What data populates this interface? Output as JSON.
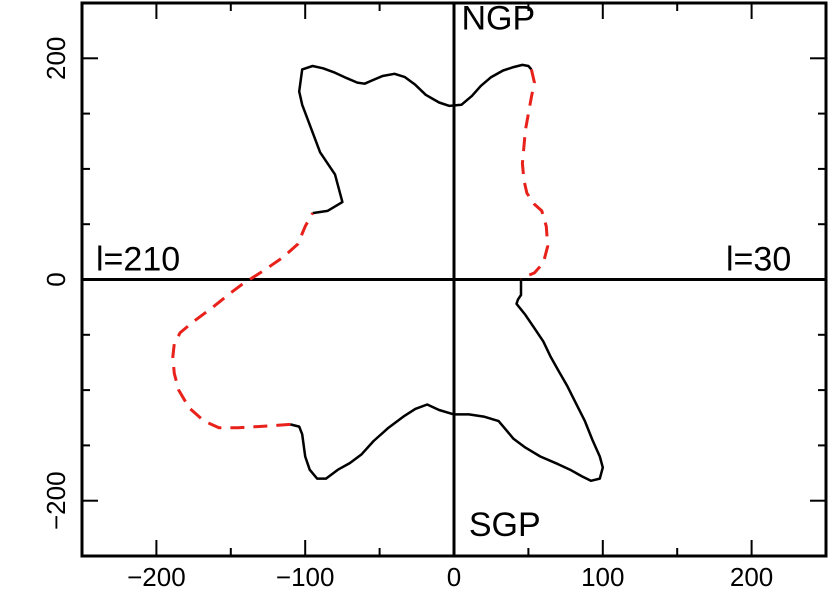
{
  "chart_data": {
    "type": "line",
    "title": "",
    "xlabel": "",
    "ylabel": "",
    "xlim": [
      -250,
      250
    ],
    "ylim": [
      -250,
      250
    ],
    "x_ticks": [
      -200,
      -100,
      0,
      100,
      200
    ],
    "y_ticks": [
      -200,
      0,
      200
    ],
    "x_tick_labels": [
      "−200",
      "−100",
      "0",
      "100",
      "200"
    ],
    "y_tick_labels": [
      "−200",
      "0",
      "200"
    ],
    "annotations": {
      "top": "NGP",
      "bottom": "SGP",
      "left": "l=210",
      "right": "l=30"
    },
    "grid": false,
    "colors": {
      "solid": "#000000",
      "dashed": "#e8211b"
    },
    "series": [
      {
        "style": "solid",
        "points": [
          [
            -95,
            60
          ],
          [
            -85,
            62
          ],
          [
            -75,
            70
          ],
          [
            -80,
            95
          ],
          [
            -90,
            115
          ],
          [
            -97,
            140
          ],
          [
            -102,
            158
          ],
          [
            -104,
            170
          ],
          [
            -103,
            180
          ],
          [
            -102,
            190
          ],
          [
            -95,
            193
          ],
          [
            -88,
            191
          ],
          [
            -80,
            187
          ],
          [
            -72,
            182
          ],
          [
            -65,
            178
          ],
          [
            -60,
            177
          ],
          [
            -55,
            180
          ],
          [
            -48,
            184
          ],
          [
            -40,
            186
          ],
          [
            -33,
            183
          ],
          [
            -26,
            176
          ],
          [
            -19,
            167
          ],
          [
            -10,
            160
          ],
          [
            -3,
            157
          ],
          [
            5,
            158
          ],
          [
            12,
            166
          ],
          [
            18,
            175
          ],
          [
            25,
            183
          ],
          [
            33,
            189
          ],
          [
            40,
            192
          ],
          [
            46,
            194
          ],
          [
            50,
            193
          ],
          [
            52,
            190
          ]
        ]
      },
      {
        "style": "dashed",
        "points": [
          [
            52,
            190
          ],
          [
            54,
            178
          ],
          [
            52,
            165
          ],
          [
            50,
            150
          ],
          [
            48,
            135
          ],
          [
            47,
            120
          ],
          [
            46,
            105
          ],
          [
            47,
            90
          ],
          [
            49,
            78
          ],
          [
            54,
            68
          ],
          [
            59,
            62
          ],
          [
            62,
            48
          ],
          [
            63,
            30
          ],
          [
            60,
            15
          ],
          [
            54,
            6
          ],
          [
            47,
            2
          ],
          [
            45,
            0
          ]
        ]
      },
      {
        "style": "solid",
        "points": [
          [
            45,
            0
          ],
          [
            45,
            -8
          ],
          [
            45,
            -14
          ],
          [
            43,
            -18
          ],
          [
            42,
            -22
          ],
          [
            48,
            -32
          ],
          [
            54,
            -44
          ],
          [
            60,
            -56
          ],
          [
            65,
            -70
          ],
          [
            70,
            -82
          ],
          [
            76,
            -96
          ],
          [
            82,
            -112
          ],
          [
            88,
            -128
          ],
          [
            93,
            -145
          ],
          [
            98,
            -160
          ],
          [
            100,
            -170
          ],
          [
            98,
            -180
          ],
          [
            92,
            -182
          ],
          [
            86,
            -178
          ],
          [
            78,
            -172
          ],
          [
            70,
            -167
          ],
          [
            58,
            -160
          ],
          [
            48,
            -152
          ],
          [
            40,
            -144
          ],
          [
            35,
            -136
          ],
          [
            30,
            -128
          ],
          [
            20,
            -124
          ],
          [
            10,
            -122
          ],
          [
            0,
            -122
          ],
          [
            -10,
            -118
          ],
          [
            -18,
            -113
          ],
          [
            -26,
            -117
          ],
          [
            -34,
            -124
          ],
          [
            -44,
            -134
          ],
          [
            -54,
            -146
          ],
          [
            -62,
            -158
          ],
          [
            -70,
            -166
          ],
          [
            -78,
            -172
          ],
          [
            -86,
            -180
          ],
          [
            -92,
            -180
          ],
          [
            -97,
            -172
          ],
          [
            -100,
            -160
          ],
          [
            -101,
            -150
          ],
          [
            -102,
            -140
          ],
          [
            -104,
            -133
          ],
          [
            -110,
            -131
          ]
        ]
      },
      {
        "style": "dashed",
        "points": [
          [
            -110,
            -131
          ],
          [
            -120,
            -132
          ],
          [
            -132,
            -133
          ],
          [
            -145,
            -134
          ],
          [
            -158,
            -134
          ],
          [
            -168,
            -128
          ],
          [
            -178,
            -116
          ],
          [
            -185,
            -100
          ],
          [
            -188,
            -85
          ],
          [
            -189,
            -70
          ],
          [
            -188,
            -58
          ],
          [
            -184,
            -48
          ],
          [
            -175,
            -38
          ],
          [
            -162,
            -25
          ],
          [
            -150,
            -12
          ],
          [
            -142,
            -4
          ],
          [
            -135,
            2
          ],
          [
            -128,
            8
          ],
          [
            -115,
            20
          ],
          [
            -105,
            32
          ],
          [
            -100,
            48
          ],
          [
            -95,
            60
          ]
        ]
      }
    ]
  }
}
